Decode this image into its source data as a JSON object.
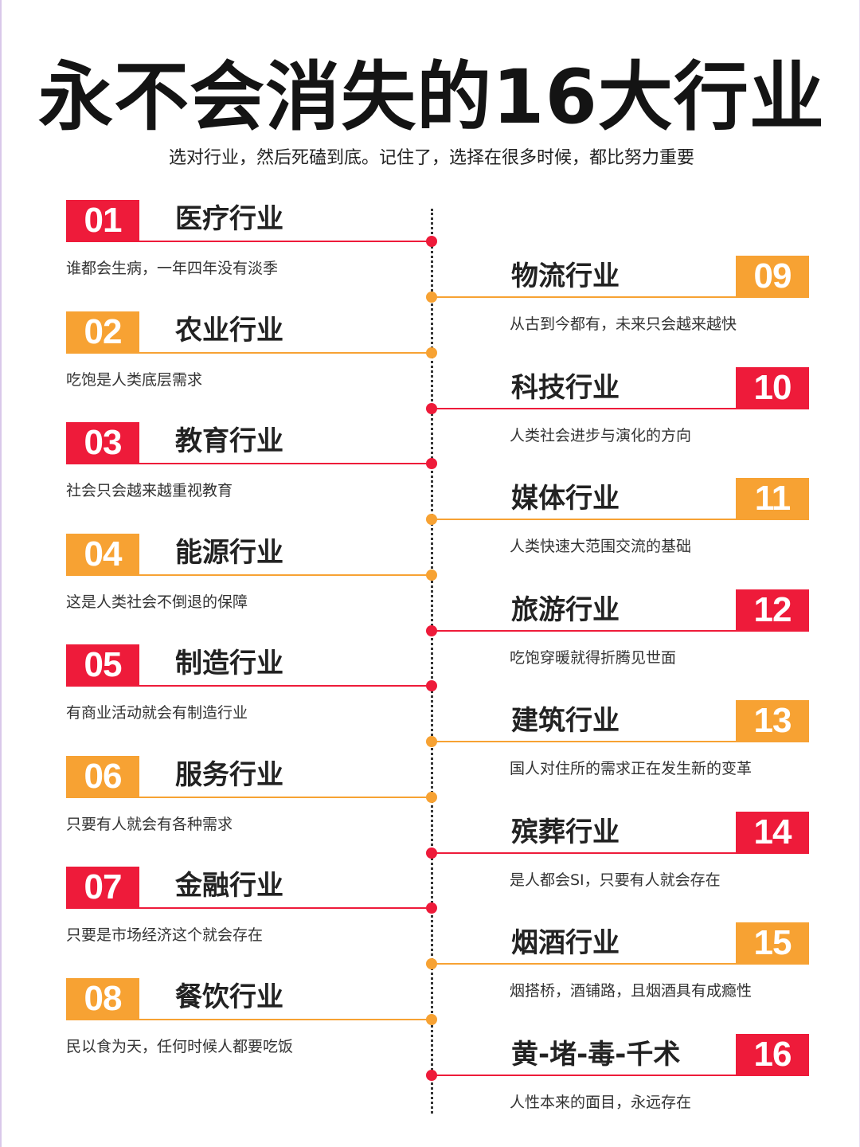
{
  "title": "永不会消失的16大行业",
  "subtitle": "选对行业，然后死磕到底。记住了，选择在很多时候，都比努力重要",
  "colors": {
    "red": "#ee1b3a",
    "orange": "#f7a233"
  },
  "left_items": [
    {
      "num": "01",
      "title": "医疗行业",
      "desc": "谁都会生病，一年四年没有淡季",
      "color": "red"
    },
    {
      "num": "02",
      "title": "农业行业",
      "desc": "吃饱是人类底层需求",
      "color": "orange"
    },
    {
      "num": "03",
      "title": "教育行业",
      "desc": "社会只会越来越重视教育",
      "color": "red"
    },
    {
      "num": "04",
      "title": "能源行业",
      "desc": "这是人类社会不倒退的保障",
      "color": "orange"
    },
    {
      "num": "05",
      "title": "制造行业",
      "desc": "有商业活动就会有制造行业",
      "color": "red"
    },
    {
      "num": "06",
      "title": "服务行业",
      "desc": "只要有人就会有各种需求",
      "color": "orange"
    },
    {
      "num": "07",
      "title": "金融行业",
      "desc": "只要是市场经济这个就会存在",
      "color": "red"
    },
    {
      "num": "08",
      "title": "餐饮行业",
      "desc": "民以食为天，任何时候人都要吃饭",
      "color": "orange"
    }
  ],
  "right_items": [
    {
      "num": "09",
      "title": "物流行业",
      "desc": "从古到今都有，未来只会越来越快",
      "color": "orange"
    },
    {
      "num": "10",
      "title": "科技行业",
      "desc": "人类社会进步与演化的方向",
      "color": "red"
    },
    {
      "num": "11",
      "title": "媒体行业",
      "desc": "人类快速大范围交流的基础",
      "color": "orange"
    },
    {
      "num": "12",
      "title": "旅游行业",
      "desc": "吃饱穿暖就得折腾见世面",
      "color": "red"
    },
    {
      "num": "13",
      "title": "建筑行业",
      "desc": "国人对住所的需求正在发生新的变革",
      "color": "orange"
    },
    {
      "num": "14",
      "title": "殡葬行业",
      "desc": "是人都会SI，只要有人就会存在",
      "color": "red"
    },
    {
      "num": "15",
      "title": "烟酒行业",
      "desc": "烟搭桥，酒铺路，且烟酒具有成瘾性",
      "color": "orange"
    },
    {
      "num": "16",
      "title": "黄-堵-毒-千术",
      "desc": "人性本来的面目，永远存在",
      "color": "red"
    }
  ]
}
